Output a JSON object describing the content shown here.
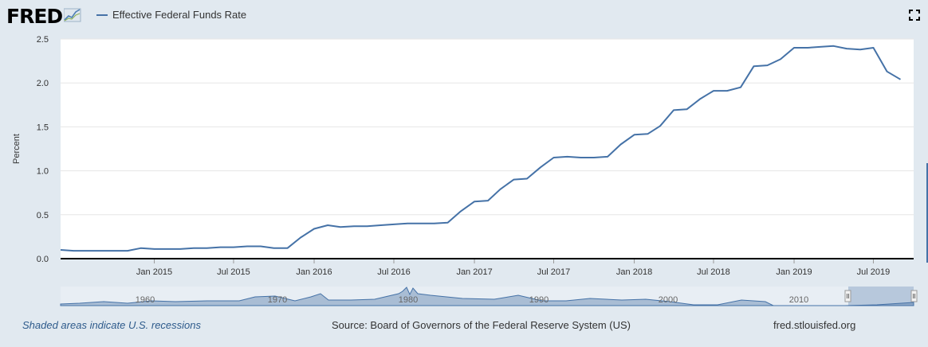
{
  "header": {
    "logo_text": "FRED",
    "legend_label": "Effective Federal Funds Rate",
    "series_color": "#4572a7",
    "fullscreen_icon": "fullscreen-icon"
  },
  "chart_data": {
    "type": "line",
    "title": "",
    "xlabel": "",
    "ylabel": "Percent",
    "ylim": [
      0.0,
      2.5
    ],
    "yticks": [
      "0.0",
      "0.5",
      "1.0",
      "1.5",
      "2.0",
      "2.5"
    ],
    "xlim": [
      "2014-06-01",
      "2019-10-01"
    ],
    "xticks": [
      {
        "date": "2015-01-01",
        "label": "Jan 2015"
      },
      {
        "date": "2015-07-01",
        "label": "Jul 2015"
      },
      {
        "date": "2016-01-01",
        "label": "Jan 2016"
      },
      {
        "date": "2016-07-01",
        "label": "Jul 2016"
      },
      {
        "date": "2017-01-01",
        "label": "Jan 2017"
      },
      {
        "date": "2017-07-01",
        "label": "Jul 2017"
      },
      {
        "date": "2018-01-01",
        "label": "Jan 2018"
      },
      {
        "date": "2018-07-01",
        "label": "Jul 2018"
      },
      {
        "date": "2019-01-01",
        "label": "Jan 2019"
      },
      {
        "date": "2019-07-01",
        "label": "Jul 2019"
      }
    ],
    "grid": true,
    "legend": "top-left",
    "series": [
      {
        "name": "Effective Federal Funds Rate",
        "color": "#4572a7",
        "points": [
          [
            "2014-06-01",
            0.1
          ],
          [
            "2014-07-01",
            0.09
          ],
          [
            "2014-08-01",
            0.09
          ],
          [
            "2014-09-01",
            0.09
          ],
          [
            "2014-10-01",
            0.09
          ],
          [
            "2014-11-01",
            0.09
          ],
          [
            "2014-12-01",
            0.12
          ],
          [
            "2015-01-01",
            0.11
          ],
          [
            "2015-02-01",
            0.11
          ],
          [
            "2015-03-01",
            0.11
          ],
          [
            "2015-04-01",
            0.12
          ],
          [
            "2015-05-01",
            0.12
          ],
          [
            "2015-06-01",
            0.13
          ],
          [
            "2015-07-01",
            0.13
          ],
          [
            "2015-08-01",
            0.14
          ],
          [
            "2015-09-01",
            0.14
          ],
          [
            "2015-10-01",
            0.12
          ],
          [
            "2015-11-01",
            0.12
          ],
          [
            "2015-12-01",
            0.24
          ],
          [
            "2016-01-01",
            0.34
          ],
          [
            "2016-02-01",
            0.38
          ],
          [
            "2016-03-01",
            0.36
          ],
          [
            "2016-04-01",
            0.37
          ],
          [
            "2016-05-01",
            0.37
          ],
          [
            "2016-06-01",
            0.38
          ],
          [
            "2016-07-01",
            0.39
          ],
          [
            "2016-08-01",
            0.4
          ],
          [
            "2016-09-01",
            0.4
          ],
          [
            "2016-10-01",
            0.4
          ],
          [
            "2016-11-01",
            0.41
          ],
          [
            "2016-12-01",
            0.54
          ],
          [
            "2017-01-01",
            0.65
          ],
          [
            "2017-02-01",
            0.66
          ],
          [
            "2017-03-01",
            0.79
          ],
          [
            "2017-04-01",
            0.9
          ],
          [
            "2017-05-01",
            0.91
          ],
          [
            "2017-06-01",
            1.04
          ],
          [
            "2017-07-01",
            1.15
          ],
          [
            "2017-08-01",
            1.16
          ],
          [
            "2017-09-01",
            1.15
          ],
          [
            "2017-10-01",
            1.15
          ],
          [
            "2017-11-01",
            1.16
          ],
          [
            "2017-12-01",
            1.3
          ],
          [
            "2018-01-01",
            1.41
          ],
          [
            "2018-02-01",
            1.42
          ],
          [
            "2018-03-01",
            1.51
          ],
          [
            "2018-04-01",
            1.69
          ],
          [
            "2018-05-01",
            1.7
          ],
          [
            "2018-06-01",
            1.82
          ],
          [
            "2018-07-01",
            1.91
          ],
          [
            "2018-08-01",
            1.91
          ],
          [
            "2018-09-01",
            1.95
          ],
          [
            "2018-10-01",
            2.19
          ],
          [
            "2018-11-01",
            2.2
          ],
          [
            "2018-12-01",
            2.27
          ],
          [
            "2019-01-01",
            2.4
          ],
          [
            "2019-02-01",
            2.4
          ],
          [
            "2019-03-01",
            2.41
          ],
          [
            "2019-04-01",
            2.42
          ],
          [
            "2019-05-01",
            2.39
          ],
          [
            "2019-06-01",
            2.38
          ],
          [
            "2019-07-01",
            2.4
          ],
          [
            "2019-08-01",
            2.13
          ],
          [
            "2019-09-01",
            2.04
          ]
        ]
      }
    ]
  },
  "navigator": {
    "labels": [
      "1960",
      "1970",
      "1980",
      "1990",
      "2000",
      "2010"
    ],
    "range_start_label": "",
    "range_end_label": ""
  },
  "footer": {
    "recession_note": "Shaded areas indicate U.S. recessions",
    "source": "Source: Board of Governors of the Federal Reserve System (US)",
    "url": "fred.stlouisfed.org"
  }
}
